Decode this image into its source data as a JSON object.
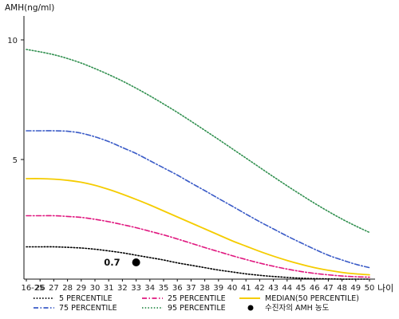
{
  "chart_data": {
    "type": "line",
    "ylabel": "AMH(ng/ml)",
    "xlabel": "나이",
    "x_categories": [
      "16-25",
      "26",
      "27",
      "28",
      "29",
      "30",
      "31",
      "32",
      "33",
      "34",
      "35",
      "36",
      "37",
      "38",
      "39",
      "40",
      "41",
      "42",
      "43",
      "44",
      "45",
      "46",
      "47",
      "48",
      "49",
      "50"
    ],
    "y_ticks": [
      5,
      10
    ],
    "ylim": [
      0,
      11
    ],
    "series": [
      {
        "name": "5 PERCENTILE",
        "color": "#000000",
        "dash": "dotted",
        "values": [
          1.35,
          1.35,
          1.35,
          1.33,
          1.3,
          1.25,
          1.18,
          1.1,
          1.0,
          0.9,
          0.8,
          0.68,
          0.58,
          0.48,
          0.38,
          0.3,
          0.22,
          0.16,
          0.11,
          0.07,
          0.04,
          0.02,
          0.01,
          0.0,
          0.0,
          0.0
        ]
      },
      {
        "name": "25 PERCENTILE",
        "color": "#e0177f",
        "dash": "dashdot",
        "values": [
          2.65,
          2.65,
          2.65,
          2.62,
          2.58,
          2.5,
          2.4,
          2.28,
          2.15,
          2.0,
          1.85,
          1.68,
          1.5,
          1.32,
          1.15,
          0.98,
          0.82,
          0.67,
          0.54,
          0.42,
          0.32,
          0.24,
          0.18,
          0.13,
          0.1,
          0.08
        ]
      },
      {
        "name": "MEDIAN(50 PERCENTILE)",
        "color": "#f5cc00",
        "dash": "solid",
        "values": [
          4.2,
          4.2,
          4.18,
          4.13,
          4.05,
          3.92,
          3.75,
          3.55,
          3.33,
          3.1,
          2.85,
          2.6,
          2.35,
          2.1,
          1.85,
          1.6,
          1.38,
          1.16,
          0.96,
          0.78,
          0.62,
          0.48,
          0.37,
          0.28,
          0.22,
          0.18
        ]
      },
      {
        "name": "75 PERCENTILE",
        "color": "#3a5bc7",
        "dash": "dashdot",
        "values": [
          6.2,
          6.2,
          6.2,
          6.18,
          6.1,
          5.95,
          5.75,
          5.5,
          5.25,
          4.95,
          4.65,
          4.35,
          4.02,
          3.7,
          3.37,
          3.05,
          2.72,
          2.4,
          2.1,
          1.8,
          1.52,
          1.25,
          1.0,
          0.8,
          0.62,
          0.48
        ]
      },
      {
        "name": "95 PERCENTILE",
        "color": "#2f8f4e",
        "dash": "dotted",
        "values": [
          9.6,
          9.5,
          9.38,
          9.22,
          9.03,
          8.8,
          8.55,
          8.28,
          7.98,
          7.66,
          7.32,
          6.97,
          6.6,
          6.22,
          5.84,
          5.45,
          5.06,
          4.67,
          4.28,
          3.9,
          3.53,
          3.17,
          2.83,
          2.51,
          2.22,
          1.95
        ]
      }
    ],
    "marker": {
      "label": "수진자의 AMH 농도",
      "x": "33",
      "y": 0.7,
      "value_label": "0.7",
      "color": "#000000"
    },
    "legend_position": "bottom"
  }
}
